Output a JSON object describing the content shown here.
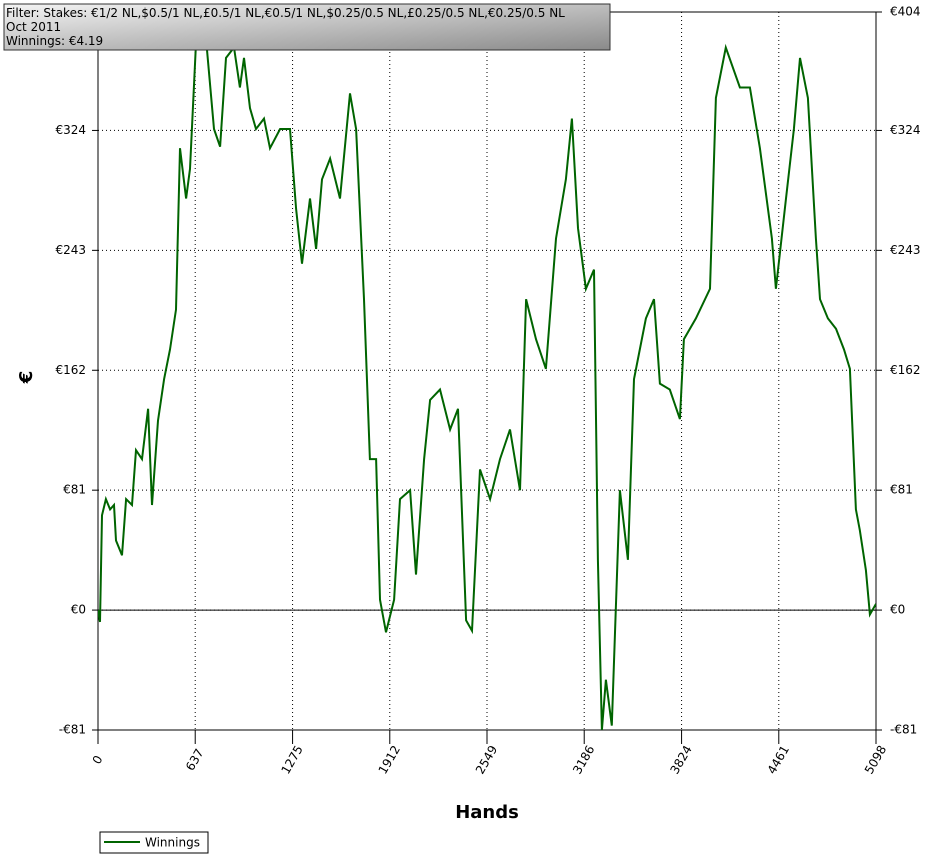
{
  "chart_data": {
    "type": "line",
    "info": [
      "Filter: Stakes: €1/2 NL,$0.5/1 NL,£0.5/1 NL,€0.5/1 NL,$0.25/0.5 NL,£0.25/0.5 NL,€0.25/0.5 NL",
      "Oct 2011",
      "Winnings: €4.19"
    ],
    "x_label": "Hands",
    "y_label": "€",
    "xlim": [
      0,
      5098
    ],
    "ylim": [
      -81,
      404
    ],
    "xticks": [
      0,
      637,
      1275,
      1912,
      2549,
      3186,
      3824,
      4461,
      5098
    ],
    "yticks": [
      {
        "value": -81,
        "label": "-€81"
      },
      {
        "value": 0,
        "label": "€0"
      },
      {
        "value": 81,
        "label": "€81"
      },
      {
        "value": 162,
        "label": "€162"
      },
      {
        "value": 243,
        "label": "€243"
      },
      {
        "value": 324,
        "label": "€324"
      },
      {
        "value": 404,
        "label": "€404"
      }
    ],
    "grid": true,
    "legend": "bottom-left",
    "series": [
      {
        "name": "Winnings",
        "color": "#006400",
        "x": [
          0,
          13,
          26,
          52,
          79,
          105,
          118,
          157,
          184,
          223,
          249,
          288,
          328,
          354,
          393,
          433,
          472,
          511,
          537,
          577,
          603,
          642,
          668,
          708,
          760,
          800,
          839,
          891,
          930,
          957,
          996,
          1035,
          1088,
          1127,
          1193,
          1258,
          1298,
          1337,
          1389,
          1429,
          1468,
          1521,
          1586,
          1651,
          1691,
          1743,
          1782,
          1822,
          1848,
          1887,
          1940,
          1979,
          2045,
          2084,
          2137,
          2176,
          2241,
          2307,
          2359,
          2412,
          2451,
          2503,
          2569,
          2634,
          2700,
          2765,
          2805,
          2870,
          2935,
          3001,
          3066,
          3105,
          3145,
          3197,
          3250,
          3276,
          3302,
          3328,
          3367,
          3420,
          3472,
          3512,
          3590,
          3643,
          3682,
          3747,
          3813,
          3839,
          3918,
          4010,
          4049,
          4114,
          4206,
          4272,
          4337,
          4416,
          4442,
          4508,
          4560,
          4600,
          4652,
          4704,
          4731,
          4783,
          4836,
          4888,
          4927,
          4966,
          4992,
          5032,
          5058,
          5098
        ],
        "values": [
          0,
          -8,
          64,
          75,
          68,
          71,
          47,
          37,
          75,
          71,
          108,
          102,
          136,
          71,
          128,
          156,
          176,
          203,
          312,
          278,
          298,
          383,
          400,
          386,
          325,
          313,
          373,
          380,
          353,
          373,
          339,
          325,
          332,
          312,
          325,
          325,
          271,
          234,
          278,
          244,
          291,
          305,
          278,
          349,
          325,
          210,
          102,
          102,
          7,
          -15,
          7,
          75,
          81,
          24,
          102,
          142,
          149,
          122,
          136,
          -7,
          -14,
          95,
          75,
          102,
          122,
          81,
          210,
          183,
          163,
          251,
          291,
          332,
          258,
          217,
          230,
          34,
          -81,
          -47,
          -78,
          81,
          34,
          156,
          197,
          210,
          153,
          149,
          129,
          183,
          197,
          217,
          346,
          380,
          353,
          353,
          312,
          251,
          217,
          278,
          325,
          373,
          346,
          251,
          210,
          197,
          190,
          176,
          163,
          68,
          54,
          27,
          -3,
          4.19
        ]
      }
    ]
  }
}
